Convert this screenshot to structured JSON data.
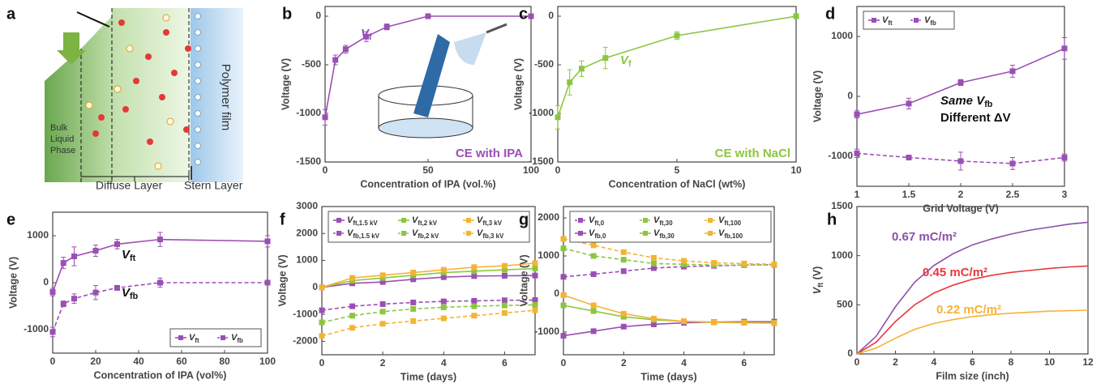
{
  "diagram": {
    "panel": "a",
    "bulk": [
      "Bulk",
      "Liquid",
      "Phase"
    ],
    "diffuse": "Diffuse Layer",
    "stern": "Stern Layer",
    "film": "Polymer film"
  },
  "chart_data": [
    {
      "panel": "b",
      "type": "line",
      "xlabel": "Concentration of IPA (vol.%)",
      "ylabel": "Voltage (V)",
      "x": [
        0,
        5,
        10,
        20,
        30,
        50,
        100
      ],
      "xlim": [
        0,
        100
      ],
      "xticks": [
        0,
        50,
        100
      ],
      "ylim": [
        -1500,
        100
      ],
      "yticks": [
        -1500,
        -1000,
        -500,
        0
      ],
      "series": [
        {
          "color": "#9b4fb5",
          "dash": false,
          "marker": "square",
          "values": [
            -1040,
            -450,
            -340,
            -210,
            -110,
            0,
            0
          ],
          "errors": [
            80,
            50,
            40,
            50,
            30,
            10,
            10
          ]
        }
      ],
      "annotations": [
        {
          "text": [
            "V",
            "f"
          ],
          "color": "#9b4fb5"
        },
        {
          "text": "CE with IPA",
          "color": "#9b4fb5"
        }
      ]
    },
    {
      "panel": "c",
      "type": "line",
      "xlabel": "Concentration of NaCl (wt%)",
      "ylabel": "Voltage (V)",
      "x": [
        0,
        0.5,
        1,
        2,
        5,
        10
      ],
      "xlim": [
        0,
        10
      ],
      "xticks": [
        0,
        5,
        10
      ],
      "ylim": [
        -1500,
        100
      ],
      "yticks": [
        -1500,
        -1000,
        -500,
        0
      ],
      "series": [
        {
          "color": "#8cc63f",
          "dash": false,
          "marker": "square",
          "values": [
            -1040,
            -680,
            -540,
            -430,
            -200,
            0
          ],
          "errors": [
            120,
            130,
            80,
            110,
            40,
            20
          ]
        }
      ],
      "annotations": [
        {
          "text": [
            "V",
            "f"
          ],
          "color": "#8cc63f"
        },
        {
          "text": "CE with NaCl",
          "color": "#8cc63f"
        }
      ]
    },
    {
      "panel": "d",
      "type": "line",
      "xlabel": "Grid Voltage (V)",
      "ylabel": "Voltage (V)",
      "x": [
        1,
        1.5,
        2,
        2.5,
        3
      ],
      "xlim": [
        1,
        3
      ],
      "xticks": [
        1,
        1.5,
        2,
        2.5,
        3
      ],
      "ylim": [
        -1500,
        1500
      ],
      "yticks": [
        -1000,
        0,
        1000
      ],
      "legend": "upper left",
      "legend_columns": 2,
      "series": [
        {
          "name": [
            "V",
            "ft"
          ],
          "color": "#9b4fb5",
          "dash": false,
          "marker": "square",
          "values": [
            -300,
            -120,
            230,
            420,
            800
          ],
          "errors": [
            60,
            90,
            50,
            100,
            180
          ]
        },
        {
          "name": [
            "V",
            "fb"
          ],
          "color": "#9b4fb5",
          "dash": true,
          "marker": "square",
          "values": [
            -950,
            -1020,
            -1080,
            -1120,
            -1020
          ],
          "errors": [
            70,
            40,
            150,
            100,
            60
          ]
        }
      ],
      "annotations": [
        {
          "text": [
            "Same V",
            "fb"
          ],
          "color": "#111111"
        },
        {
          "text": "Different ΔV",
          "color": "#111111"
        }
      ]
    },
    {
      "panel": "e",
      "type": "line",
      "xlabel": "Concentration of IPA (vol%)",
      "ylabel": "Voltage (V)",
      "x": [
        0,
        5,
        10,
        20,
        30,
        50,
        100
      ],
      "xlim": [
        0,
        100
      ],
      "xticks": [
        0,
        20,
        40,
        60,
        80,
        100
      ],
      "ylim": [
        -1500,
        1500
      ],
      "yticks": [
        -1000,
        0,
        1000
      ],
      "legend": "lower right",
      "legend_columns": 2,
      "series": [
        {
          "name": [
            "V",
            "ft"
          ],
          "color": "#9b4fb5",
          "dash": false,
          "marker": "square",
          "values": [
            -200,
            420,
            560,
            680,
            820,
            920,
            880
          ],
          "errors": [
            80,
            120,
            200,
            120,
            100,
            150,
            120
          ]
        },
        {
          "name": [
            "V",
            "fb"
          ],
          "color": "#9b4fb5",
          "dash": true,
          "marker": "square",
          "values": [
            -1050,
            -450,
            -340,
            -210,
            -110,
            0,
            0
          ],
          "errors": [
            100,
            60,
            100,
            150,
            50,
            100,
            30
          ]
        }
      ],
      "annotations": [
        {
          "text": [
            "V",
            "ft"
          ],
          "color": "#111111"
        },
        {
          "text": [
            "V",
            "fb"
          ],
          "color": "#111111"
        }
      ]
    },
    {
      "panel": "f",
      "type": "line",
      "xlabel": "Time (days)",
      "ylabel": "Voltage (V)",
      "x": [
        0,
        1,
        2,
        3,
        4,
        5,
        6,
        7
      ],
      "xlim": [
        0,
        7
      ],
      "xticks": [
        0,
        2,
        4,
        6
      ],
      "ylim": [
        -2500,
        3000
      ],
      "yticks": [
        -2000,
        -1000,
        0,
        1000,
        2000,
        3000
      ],
      "legend": "top",
      "legend_columns": 3,
      "series": [
        {
          "name": [
            "V",
            "ft,1.5 kV"
          ],
          "color": "#9b4fb5",
          "dash": false,
          "marker": "square",
          "values": [
            0,
            150,
            200,
            300,
            380,
            420,
            430,
            440
          ]
        },
        {
          "name": [
            "V",
            "ft,2 kV"
          ],
          "color": "#8cc63f",
          "dash": false,
          "marker": "square",
          "values": [
            0,
            250,
            350,
            450,
            550,
            600,
            650,
            700
          ]
        },
        {
          "name": [
            "V",
            "ft,3 kV"
          ],
          "color": "#f5b335",
          "dash": false,
          "marker": "square",
          "values": [
            0,
            350,
            450,
            550,
            650,
            750,
            800,
            900
          ]
        },
        {
          "name": [
            "V",
            "fb,1.5 kV"
          ],
          "color": "#9b4fb5",
          "dash": true,
          "marker": "square",
          "values": [
            -850,
            -700,
            -620,
            -560,
            -520,
            -500,
            -480,
            -470
          ]
        },
        {
          "name": [
            "V",
            "fb,2 kV"
          ],
          "color": "#8cc63f",
          "dash": true,
          "marker": "square",
          "values": [
            -1300,
            -1050,
            -900,
            -800,
            -740,
            -700,
            -670,
            -650
          ]
        },
        {
          "name": [
            "V",
            "fb,3 kV"
          ],
          "color": "#f5b335",
          "dash": true,
          "marker": "square",
          "values": [
            -1800,
            -1500,
            -1350,
            -1250,
            -1150,
            -1050,
            -950,
            -850
          ]
        }
      ]
    },
    {
      "panel": "g",
      "type": "line",
      "xlabel": "Time (days)",
      "ylabel": "Voltage (V)",
      "x": [
        0,
        1,
        2,
        3,
        4,
        5,
        6,
        7
      ],
      "xlim": [
        0,
        7
      ],
      "xticks": [
        0,
        2,
        4,
        6
      ],
      "ylim": [
        -1600,
        2300
      ],
      "yticks": [
        -1000,
        0,
        1000,
        2000
      ],
      "legend": "top",
      "legend_columns": 3,
      "series": [
        {
          "name": [
            "V",
            "ft,0"
          ],
          "color": "#9b4fb5",
          "dash": true,
          "marker": "square",
          "values": [
            450,
            520,
            600,
            680,
            720,
            740,
            760,
            770
          ]
        },
        {
          "name": [
            "V",
            "ft,30"
          ],
          "color": "#8cc63f",
          "dash": true,
          "marker": "square",
          "values": [
            1200,
            1000,
            900,
            800,
            780,
            760,
            760,
            760
          ]
        },
        {
          "name": [
            "V",
            "ft,100"
          ],
          "color": "#f5b335",
          "dash": true,
          "marker": "square",
          "values": [
            1450,
            1280,
            1100,
            950,
            870,
            820,
            800,
            780
          ]
        },
        {
          "name": [
            "V",
            "fb,0"
          ],
          "color": "#9b4fb5",
          "dash": false,
          "marker": "square",
          "values": [
            -1100,
            -980,
            -860,
            -800,
            -760,
            -740,
            -730,
            -730
          ]
        },
        {
          "name": [
            "V",
            "fb,30"
          ],
          "color": "#8cc63f",
          "dash": false,
          "marker": "square",
          "values": [
            -300,
            -450,
            -600,
            -680,
            -720,
            -740,
            -750,
            -760
          ]
        },
        {
          "name": [
            "V",
            "fb,100"
          ],
          "color": "#f5b335",
          "dash": false,
          "marker": "square",
          "values": [
            -30,
            -300,
            -520,
            -650,
            -720,
            -750,
            -760,
            -770
          ]
        }
      ]
    },
    {
      "panel": "h",
      "type": "line",
      "xlabel": "Film size (inch)",
      "ylabel": [
        "V",
        "ft",
        " (V)"
      ],
      "x": [
        0,
        1,
        2,
        3,
        4,
        5,
        6,
        7,
        8,
        9,
        10,
        11,
        12
      ],
      "xlim": [
        0,
        12
      ],
      "xticks": [
        0,
        2,
        4,
        6,
        8,
        10,
        12
      ],
      "ylim": [
        0,
        1500
      ],
      "yticks": [
        0,
        500,
        1000,
        1500
      ],
      "series": [
        {
          "color": "#8d4fa8",
          "dash": false,
          "values": [
            0,
            180,
            480,
            730,
            900,
            1020,
            1110,
            1170,
            1220,
            1260,
            1290,
            1320,
            1340
          ]
        },
        {
          "color": "#e8383d",
          "dash": false,
          "values": [
            0,
            120,
            330,
            500,
            620,
            700,
            760,
            800,
            830,
            850,
            870,
            885,
            895
          ]
        },
        {
          "color": "#f5b335",
          "dash": false,
          "values": [
            0,
            60,
            160,
            250,
            310,
            350,
            380,
            400,
            415,
            425,
            435,
            440,
            445
          ]
        }
      ],
      "annotations": [
        {
          "text": "0.67 mC/m²",
          "color": "#8d4fa8"
        },
        {
          "text": "0.45 mC/m²",
          "color": "#e8383d"
        },
        {
          "text": "0.22 mC/m²",
          "color": "#f5b335"
        }
      ]
    }
  ]
}
